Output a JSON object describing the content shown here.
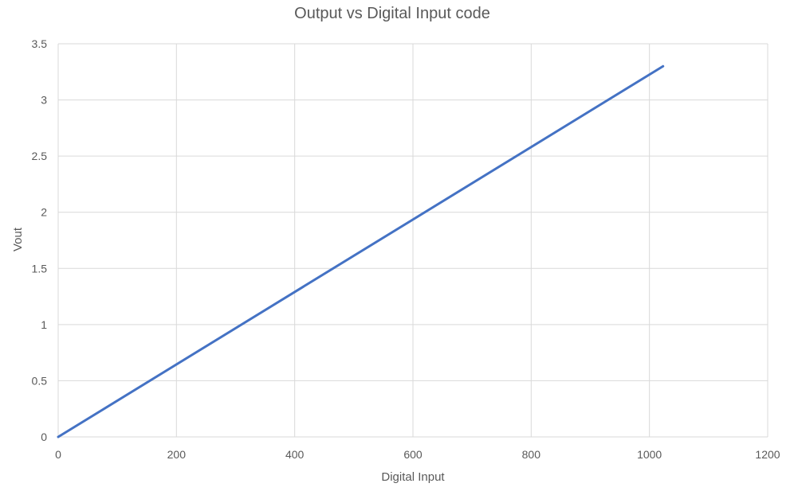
{
  "colors": {
    "background": "#ffffff",
    "grid": "#d9d9d9",
    "axis_text": "#595959",
    "title_text": "#404040",
    "series_line": "#4472c4"
  },
  "chart_data": {
    "type": "line",
    "title": "Output vs Digital Input code",
    "xlabel": "Digital Input",
    "ylabel": "Vout",
    "xlim": [
      0,
      1200
    ],
    "ylim": [
      0,
      3.5
    ],
    "grid": true,
    "legend": "none",
    "x_ticks": [
      "0",
      "200",
      "400",
      "600",
      "800",
      "1000",
      "1200"
    ],
    "y_ticks": [
      "0",
      "0.5",
      "1",
      "1.5",
      "2",
      "2.5",
      "3",
      "3.5"
    ],
    "series": [
      {
        "x": [
          0,
          1023
        ],
        "y": [
          0,
          3.3
        ]
      }
    ]
  }
}
